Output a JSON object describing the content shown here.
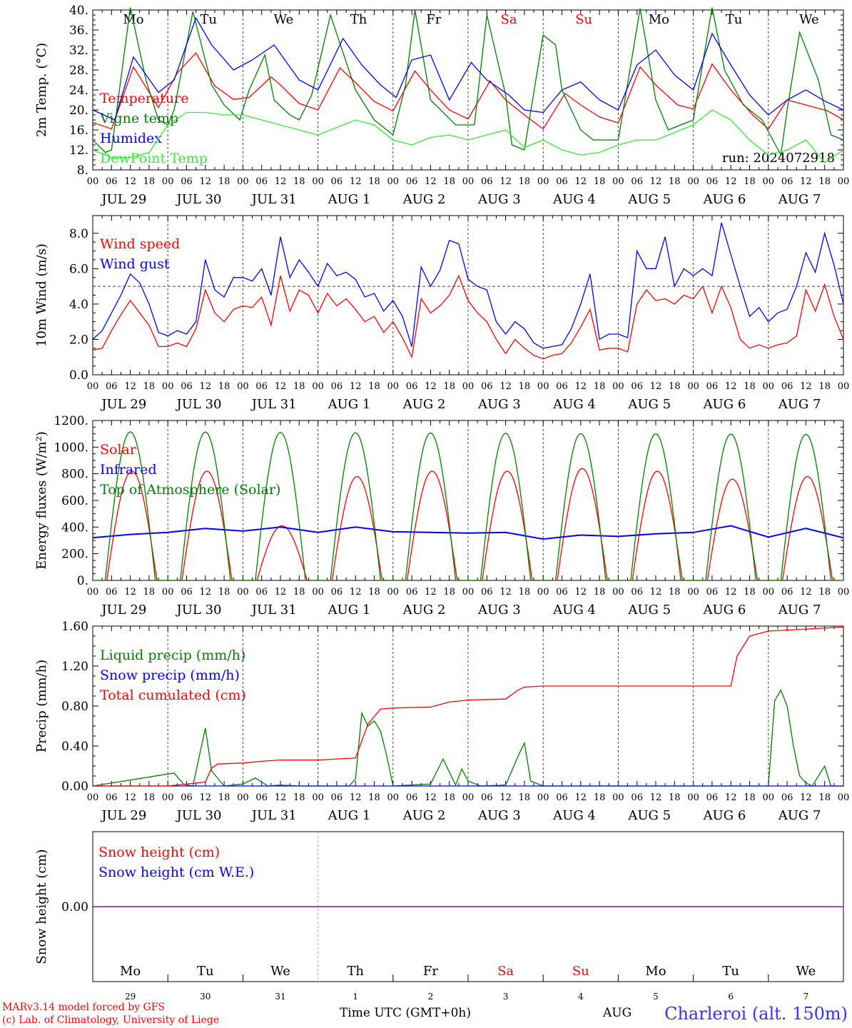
{
  "footer": {
    "credit1": "MARv3.14 model forced by GFS",
    "credit2": "(c) Lab. of Climatology, University of Liege",
    "time_label": "Time UTC (GMT+0h)",
    "overlap_label": "AUG",
    "station": "Charleroi (alt. 150m)"
  },
  "colors": {
    "red": "#ff0000",
    "blue": "#0000ff",
    "green": "#008000",
    "lime": "#33ee33",
    "purple": "#8000a0",
    "grid": "#555555"
  },
  "days": {
    "weekday": [
      "Mo",
      "Tu",
      "We",
      "Th",
      "Fr",
      "Sa",
      "Su",
      "Mo",
      "Tu",
      "We"
    ],
    "weekday_colors": [
      "#000000",
      "#000000",
      "#000000",
      "#000000",
      "#000000",
      "#ff0000",
      "#ff0000",
      "#000000",
      "#000000",
      "#000000"
    ],
    "dates": [
      "JUL 29",
      "JUL 30",
      "JUL 31",
      "AUG  1",
      "AUG  2",
      "AUG  3",
      "AUG  4",
      "AUG  5",
      "AUG  6",
      "AUG  7"
    ],
    "day_numbers": [
      "29",
      "30",
      "31",
      "1",
      "2",
      "3",
      "4",
      "5",
      "6",
      "7"
    ],
    "hour_ticks": [
      "00",
      "06",
      "12",
      "18"
    ],
    "final_tick": "00"
  },
  "chart_data": [
    {
      "type": "line",
      "ylabel": "2m Temp. (°C)",
      "ylim": [
        8,
        40
      ],
      "yticks": [
        "8.",
        "12.",
        "16.",
        "20.",
        "24.",
        "28.",
        "32.",
        "36.",
        "40."
      ],
      "run_label": "run: 2024072918",
      "x_unit": "hours from JUL 29 00 UTC",
      "series": [
        {
          "name": "Temperature",
          "color": "#ff0000",
          "x": [
            0,
            6,
            13,
            21,
            27,
            33,
            39,
            45,
            50,
            57,
            60,
            66,
            72,
            79,
            84,
            90,
            96,
            103,
            108,
            114,
            120,
            127,
            132,
            138,
            144,
            151,
            156,
            162,
            168,
            175,
            180,
            187,
            192,
            198,
            204,
            211,
            216,
            222,
            228,
            235,
            240
          ],
          "values": [
            17.5,
            16.2,
            28.6,
            20.5,
            27.4,
            31.4,
            24.8,
            22.1,
            22.5,
            26.6,
            25.0,
            21.3,
            20.0,
            28.4,
            25.5,
            21.7,
            19.8,
            27.8,
            24.0,
            20.0,
            18.2,
            25.8,
            22.0,
            19.0,
            16.2,
            23.3,
            21.0,
            18.6,
            17.4,
            28.6,
            25.0,
            21.0,
            20.2,
            29.2,
            24.0,
            19.0,
            16.2,
            22.0,
            21.0,
            19.8,
            18.0
          ]
        },
        {
          "name": "Vigne temp",
          "color": "#008000",
          "x": [
            0,
            4,
            6,
            12,
            17,
            21,
            24,
            26,
            32,
            38,
            42,
            47,
            50,
            55,
            58,
            63,
            66,
            70,
            76,
            84,
            90,
            96,
            100,
            103,
            108,
            116,
            122,
            126,
            132,
            134,
            138,
            144,
            148,
            150,
            156,
            160,
            168,
            175,
            180,
            184,
            192,
            198,
            202,
            208,
            214,
            220,
            222,
            226,
            232,
            236,
            240
          ],
          "values": [
            14,
            11.5,
            12,
            40.5,
            26,
            18,
            17,
            20,
            39.7,
            25,
            21,
            18,
            24,
            31,
            22,
            19,
            18,
            23,
            39,
            24,
            18,
            15,
            25,
            40,
            22,
            17,
            17,
            39,
            23,
            13,
            12,
            35,
            33,
            24,
            16,
            14,
            14,
            40.3,
            22,
            16,
            18,
            40.5,
            28,
            21,
            18,
            11,
            20,
            35.5,
            26,
            15,
            14
          ]
        },
        {
          "name": "Humidex",
          "color": "#0000ff",
          "x": [
            0,
            7,
            13,
            21,
            26,
            33,
            38,
            45,
            51,
            58,
            66,
            72,
            80,
            86,
            92,
            97,
            102,
            108,
            114,
            121,
            126,
            133,
            138,
            144,
            150,
            156,
            162,
            168,
            174,
            180,
            186,
            192,
            198,
            204,
            210,
            216,
            222,
            228,
            234,
            240
          ],
          "values": [
            20,
            18,
            30.6,
            23.5,
            26,
            38.4,
            33,
            28,
            30,
            33,
            26,
            24,
            34.3,
            29,
            25,
            22.5,
            30,
            31,
            22,
            29.5,
            26,
            23,
            20,
            19.5,
            24,
            25.6,
            22,
            20,
            29,
            32,
            27,
            24,
            35.3,
            29,
            23,
            19,
            22,
            24,
            21.8,
            20
          ]
        },
        {
          "name": "DewPoint Temp",
          "color": "#33ee33",
          "x": [
            0,
            6,
            12,
            18,
            24,
            30,
            36,
            42,
            48,
            54,
            60,
            66,
            72,
            78,
            84,
            90,
            96,
            102,
            108,
            114,
            120,
            126,
            132,
            138,
            144,
            150,
            156,
            162,
            168,
            174,
            180,
            186,
            192,
            198,
            204,
            210,
            216,
            222,
            228,
            234,
            240
          ],
          "values": [
            12,
            10.5,
            10.5,
            11.5,
            17,
            19.5,
            19.5,
            19,
            19,
            18,
            17,
            16,
            15,
            16.5,
            18,
            17,
            14,
            13,
            14.5,
            15,
            14,
            15,
            16,
            12.5,
            14,
            12,
            11,
            11.5,
            13,
            14,
            14,
            15.5,
            17,
            20,
            18,
            14,
            11,
            12,
            14,
            9.5,
            12
          ]
        }
      ]
    },
    {
      "type": "line",
      "ylabel": "10m Wind (m/s)",
      "ylim": [
        0,
        9
      ],
      "yticks": [
        "0.0",
        "2.0",
        "4.0",
        "6.0",
        "8.0"
      ],
      "reference_line": 5,
      "series": [
        {
          "name": "Wind speed",
          "color": "#ff0000",
          "x": [
            0,
            3,
            6,
            9,
            12,
            15,
            18,
            21,
            24,
            27,
            30,
            33,
            36,
            39,
            42,
            45,
            48,
            51,
            54,
            57,
            60,
            63,
            66,
            69,
            72,
            75,
            78,
            81,
            84,
            87,
            90,
            93,
            96,
            99,
            102,
            105,
            108,
            111,
            114,
            117,
            120,
            123,
            126,
            129,
            132,
            135,
            138,
            141,
            144,
            147,
            150,
            153,
            156,
            159,
            162,
            165,
            168,
            171,
            174,
            177,
            180,
            183,
            186,
            189,
            192,
            195,
            198,
            201,
            204,
            207,
            210,
            213,
            216,
            219,
            222,
            225,
            228,
            231,
            234,
            237,
            240
          ],
          "values": [
            1.4,
            1.5,
            2.5,
            3.4,
            4.2,
            3.5,
            2.8,
            1.6,
            1.6,
            1.8,
            1.6,
            2.6,
            4.8,
            3.5,
            3.0,
            3.7,
            3.9,
            3.8,
            4.4,
            2.8,
            5.6,
            3.6,
            4.8,
            4.5,
            3.5,
            4.6,
            3.9,
            4.3,
            3.7,
            3.0,
            3.3,
            2.4,
            3.0,
            2.1,
            1.0,
            4.3,
            3.5,
            3.9,
            4.5,
            5.6,
            4.2,
            3.5,
            3.0,
            2.0,
            1.2,
            2.0,
            1.5,
            1.1,
            0.9,
            1.1,
            1.2,
            1.8,
            2.7,
            3.7,
            1.4,
            1.5,
            1.5,
            1.3,
            4.0,
            4.8,
            4.2,
            4.3,
            4.0,
            4.5,
            4.3,
            5.0,
            3.5,
            5.0,
            3.8,
            2.0,
            1.5,
            1.7,
            1.5,
            1.7,
            1.8,
            2.2,
            4.8,
            3.6,
            5.1,
            3.3,
            2.0
          ]
        },
        {
          "name": "Wind gust",
          "color": "#0000ff",
          "x": [
            0,
            3,
            6,
            9,
            12,
            15,
            18,
            21,
            24,
            27,
            30,
            33,
            36,
            39,
            42,
            45,
            48,
            51,
            54,
            57,
            60,
            63,
            66,
            69,
            72,
            75,
            78,
            81,
            84,
            87,
            90,
            93,
            96,
            99,
            102,
            105,
            108,
            111,
            114,
            117,
            120,
            123,
            126,
            129,
            132,
            135,
            138,
            141,
            144,
            147,
            150,
            153,
            156,
            159,
            162,
            165,
            168,
            171,
            174,
            177,
            180,
            183,
            186,
            189,
            192,
            195,
            198,
            201,
            204,
            207,
            210,
            213,
            216,
            219,
            222,
            225,
            228,
            231,
            234,
            237,
            240
          ],
          "values": [
            2.0,
            2.5,
            3.5,
            4.5,
            5.7,
            5.2,
            4.0,
            2.4,
            2.2,
            2.5,
            2.3,
            3.0,
            6.5,
            4.8,
            4.4,
            5.5,
            5.5,
            5.3,
            6.0,
            4.5,
            7.8,
            5.5,
            6.5,
            5.8,
            5.0,
            6.3,
            5.6,
            5.8,
            5.4,
            4.4,
            4.6,
            3.6,
            4.2,
            3.3,
            1.6,
            6.1,
            5.0,
            5.9,
            7.6,
            7.4,
            5.4,
            5.0,
            4.8,
            3.0,
            2.3,
            3.0,
            2.6,
            1.8,
            1.5,
            1.6,
            1.7,
            2.6,
            4.0,
            5.7,
            2.0,
            2.3,
            2.3,
            2.1,
            7.0,
            6.0,
            6.0,
            7.8,
            5.0,
            6.0,
            5.6,
            6.0,
            5.6,
            8.6,
            6.8,
            5.0,
            3.3,
            3.8,
            3.0,
            3.5,
            3.7,
            5.0,
            6.9,
            5.8,
            8.0,
            6.2,
            4.0
          ]
        }
      ]
    },
    {
      "type": "line",
      "ylabel": "Energy fluxes (W/m²)",
      "ylim": [
        0,
        1200
      ],
      "yticks": [
        "0.",
        "200.",
        "400.",
        "600.",
        "800.",
        "1000.",
        "1200."
      ],
      "series": [
        {
          "name": "Solar",
          "color": "#ff0000",
          "peak_hour_of_day": 12.5,
          "daily_peaks": [
            820,
            820,
            410,
            780,
            820,
            820,
            840,
            820,
            760,
            780
          ]
        },
        {
          "name": "Infrared",
          "color": "#0000ff",
          "x": [
            0,
            12,
            24,
            36,
            48,
            60,
            72,
            84,
            96,
            108,
            120,
            132,
            144,
            156,
            168,
            180,
            192,
            204,
            216,
            228,
            240
          ],
          "values": [
            320,
            345,
            360,
            390,
            370,
            400,
            360,
            400,
            365,
            360,
            355,
            360,
            310,
            340,
            330,
            350,
            360,
            410,
            325,
            390,
            320
          ]
        },
        {
          "name": "Top of Atmosphere (Solar)",
          "color": "#008000",
          "peak_hour_of_day": 12,
          "daily_peaks": [
            1115,
            1113,
            1110,
            1108,
            1106,
            1104,
            1102,
            1100,
            1098,
            1096
          ]
        }
      ]
    },
    {
      "type": "line",
      "ylabel": "Precip (mm/h)",
      "ylim": [
        0,
        1.6
      ],
      "yticks": [
        "0.00",
        "0.40",
        "0.80",
        "1.20",
        "1.60"
      ],
      "series": [
        {
          "name": "Liquid precip (mm/h)",
          "color": "#008000",
          "x": [
            0,
            26,
            29,
            32,
            36,
            38,
            42,
            48,
            52,
            56,
            60,
            66,
            82,
            84,
            86,
            88,
            90,
            92,
            94,
            96,
            108,
            112,
            116,
            118,
            120,
            124,
            132,
            136,
            138,
            140,
            144,
            216,
            218,
            220,
            222,
            224,
            226,
            228,
            230,
            234,
            236,
            240
          ],
          "values": [
            0,
            0.13,
            0.02,
            0,
            0.58,
            0.15,
            0,
            0.02,
            0.08,
            0,
            0.01,
            0,
            0,
            0.07,
            0.73,
            0.6,
            0.65,
            0.55,
            0.3,
            0,
            0.02,
            0.27,
            0.01,
            0.17,
            0.05,
            0,
            0.01,
            0.3,
            0.43,
            0.05,
            0,
            0,
            0.85,
            0.96,
            0.8,
            0.4,
            0.1,
            0.03,
            0,
            0.2,
            0,
            0
          ]
        },
        {
          "name": "Snow precip (mm/h)",
          "color": "#0000ff",
          "x": [
            0,
            240
          ],
          "values": [
            0,
            0
          ]
        },
        {
          "name": "Total cumulated (cm)",
          "color": "#ff0000",
          "x": [
            0,
            24,
            36,
            38,
            40,
            48,
            55,
            60,
            72,
            84,
            86,
            88,
            92,
            96,
            108,
            114,
            117,
            120,
            132,
            136,
            138,
            144,
            192,
            204,
            206,
            210,
            216,
            222,
            240
          ],
          "values": [
            0,
            0,
            0.04,
            0.18,
            0.22,
            0.23,
            0.25,
            0.26,
            0.26,
            0.28,
            0.45,
            0.62,
            0.77,
            0.78,
            0.79,
            0.84,
            0.85,
            0.86,
            0.87,
            0.96,
            0.99,
            1.0,
            1.0,
            1.0,
            1.3,
            1.5,
            1.55,
            1.56,
            1.59
          ]
        }
      ]
    },
    {
      "type": "line",
      "ylabel": "Snow height (cm)",
      "ylim": [
        -1,
        1
      ],
      "yticks": [
        "0.00"
      ],
      "series": [
        {
          "name": "Snow height (cm)",
          "color": "#ff0000",
          "x": [
            0,
            240
          ],
          "values": [
            0,
            0
          ]
        },
        {
          "name": "Snow height (cm W.E.)",
          "color": "#0000ff",
          "x": [
            0,
            240
          ],
          "values": [
            0,
            0
          ]
        }
      ]
    }
  ]
}
